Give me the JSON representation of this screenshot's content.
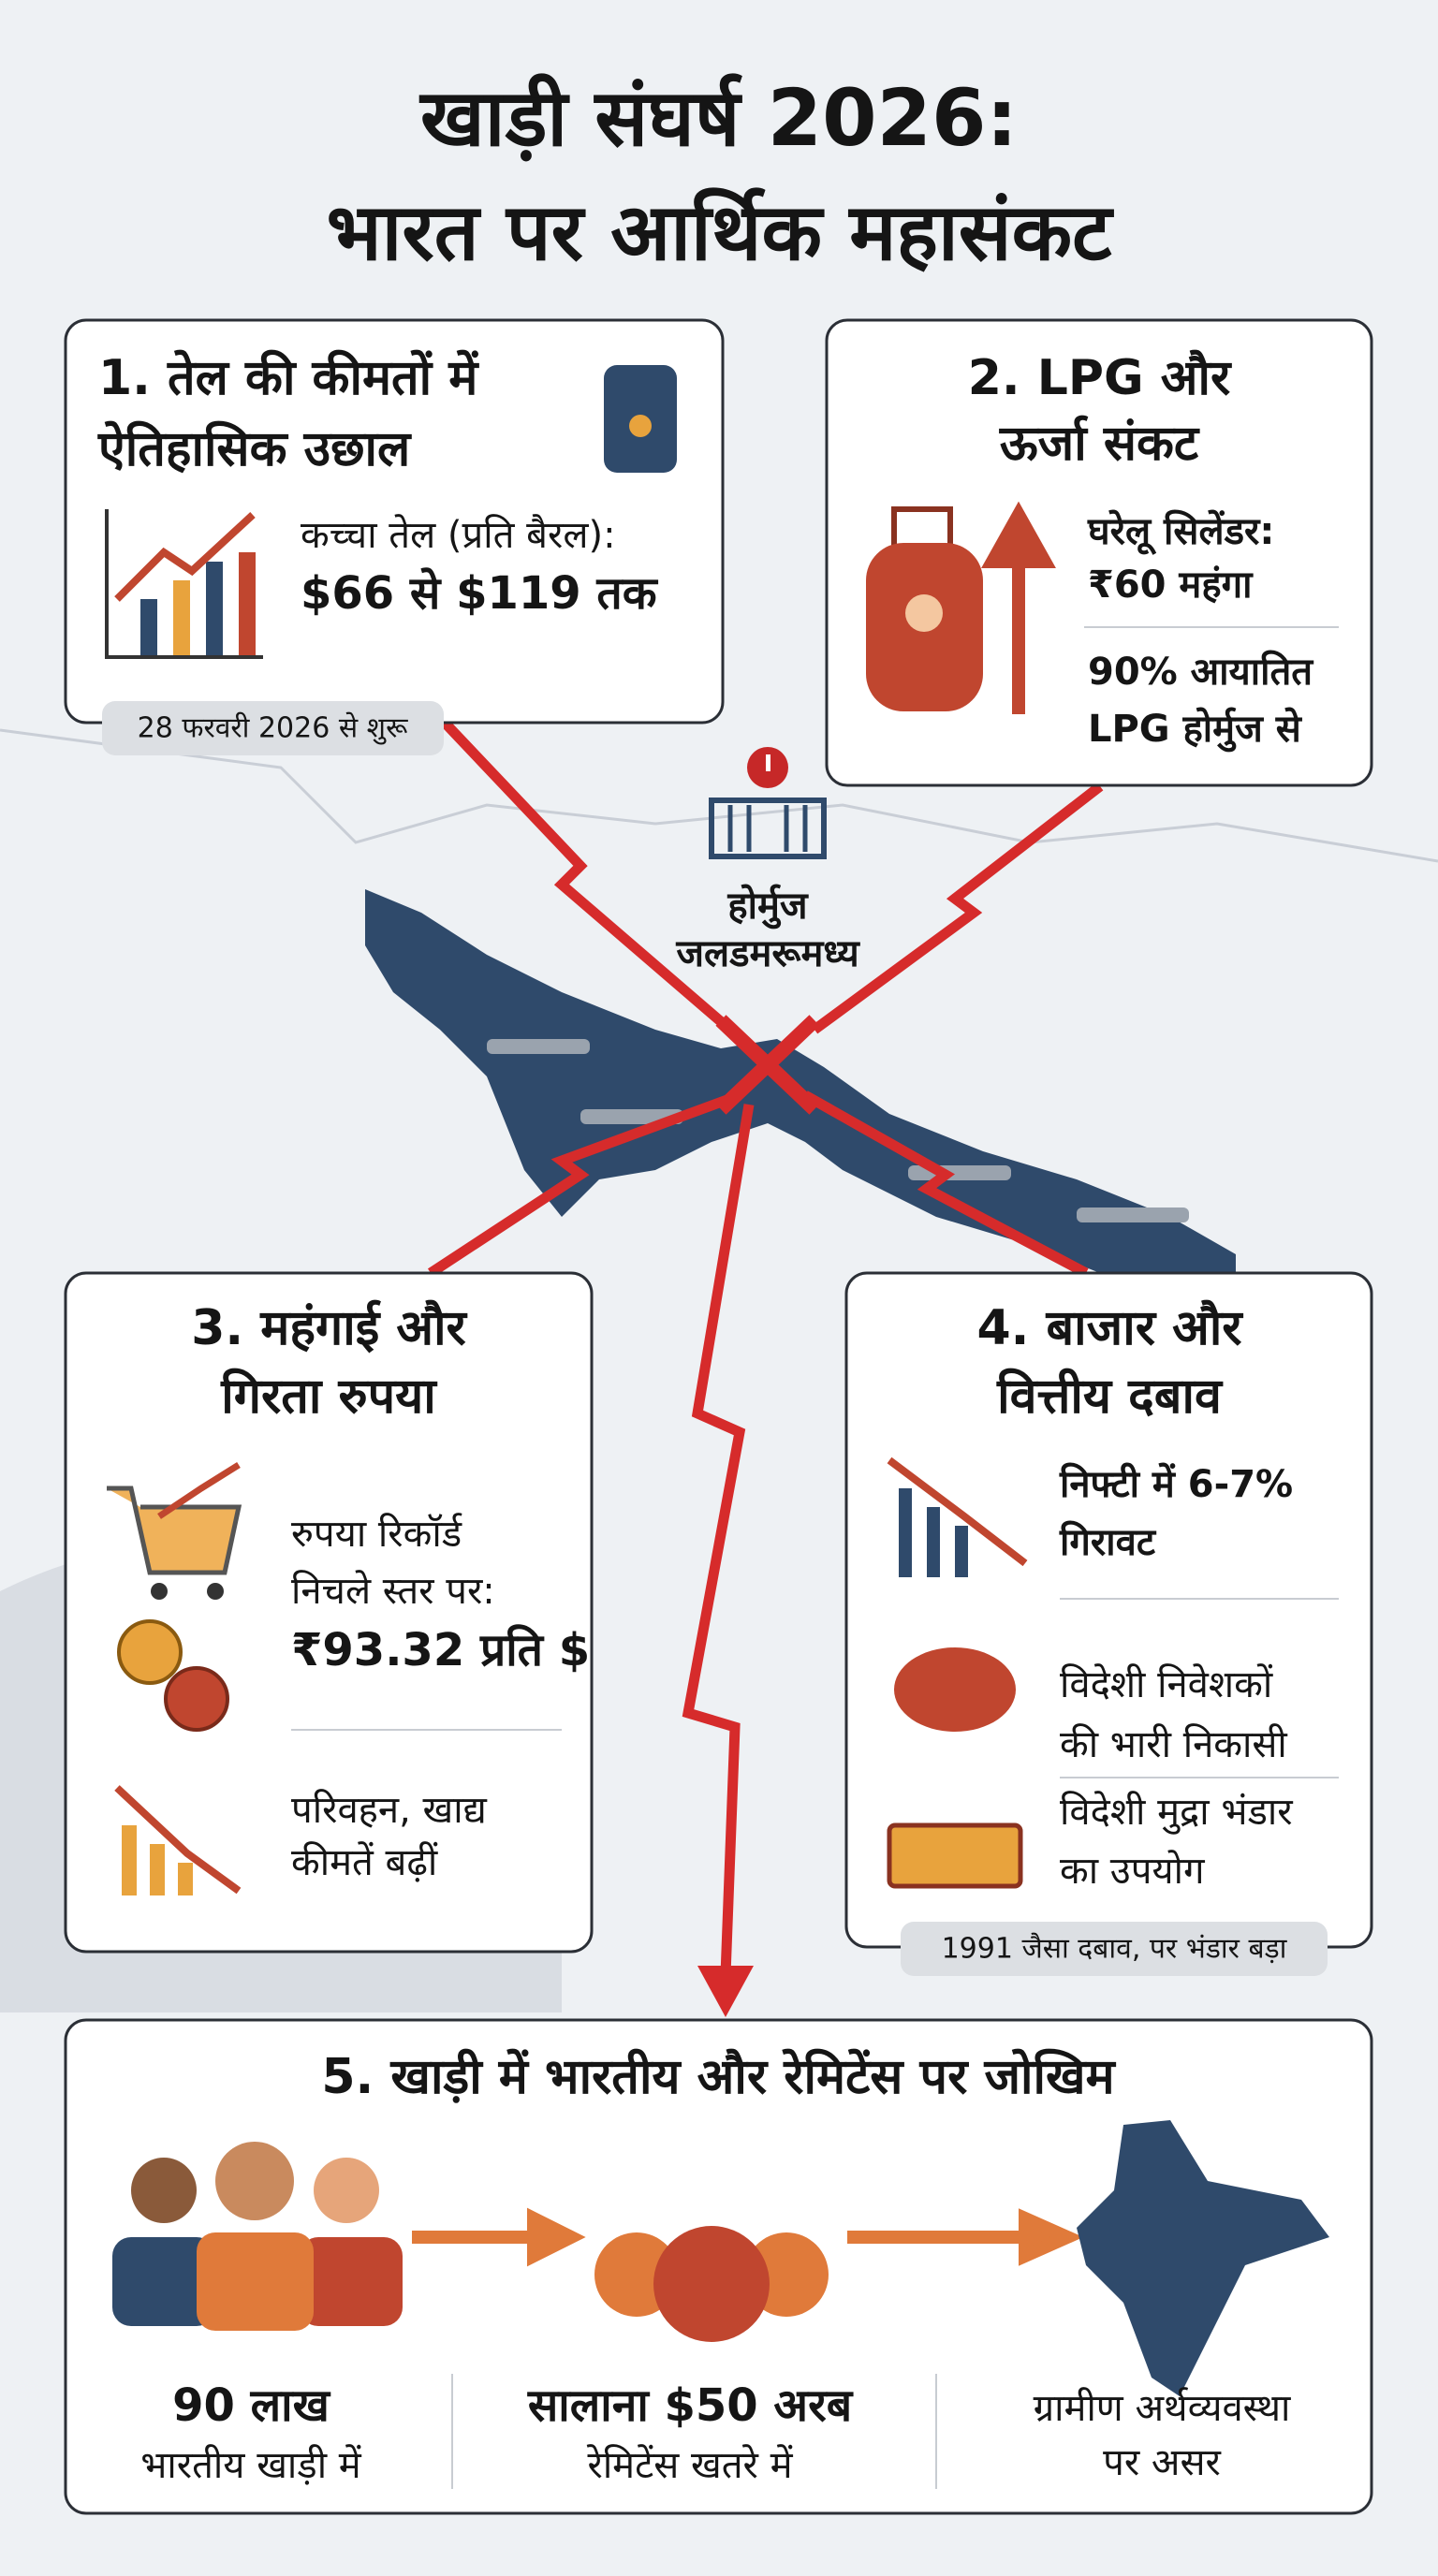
{
  "title": [
    "खाड़ी संघर्ष 2026:",
    "भारत पर आर्थिक महासंकट"
  ],
  "map": {
    "label": [
      "होर्मुज",
      "जलडमरूमध्य"
    ]
  },
  "sections": [
    {
      "heading": [
        "1. तेल की कीमतों में",
        "ऐतिहासिक उछाल"
      ],
      "items": [
        [
          "कच्चा तेल (प्रति बैरल):",
          "$66 से $119 तक"
        ]
      ],
      "note": "28 फरवरी 2026 से शुरू"
    },
    {
      "heading": [
        "2. LPG और",
        "ऊर्जा संकट"
      ],
      "items": [
        [
          "घरेलू सिलेंडर:",
          "₹60 महंगा"
        ],
        [
          "90% आयातित",
          "LPG होर्मुज से"
        ]
      ]
    },
    {
      "heading": [
        "3. महंगाई और",
        "गिरता रुपया"
      ],
      "items": [
        [
          "रुपया रिकॉर्ड",
          "निचले स्तर पर:",
          "₹93.32 प्रति $"
        ],
        [
          "परिवहन, खाद्य",
          "कीमतें बढ़ीं"
        ]
      ]
    },
    {
      "heading": [
        "4. बाजार और",
        "वित्तीय दबाव"
      ],
      "items": [
        [
          "निफ्टी में 6-7%",
          "गिरावट"
        ],
        [
          "विदेशी निवेशकों",
          "की भारी निकासी"
        ],
        [
          "विदेशी मुद्रा भंडार",
          "का उपयोग"
        ]
      ],
      "note": "1991 जैसा दबाव, पर भंडार बड़ा"
    },
    {
      "heading": [
        "5. खाड़ी में भारतीय और रेमिटेंस पर जोखिम"
      ],
      "items": [
        [
          "90 लाख",
          "भारतीय खाड़ी में"
        ],
        [
          "सालाना $50 अरब",
          "रेमिटेंस खतरे में"
        ],
        [
          "ग्रामीण अर्थव्यवस्था",
          "पर असर"
        ]
      ]
    }
  ]
}
